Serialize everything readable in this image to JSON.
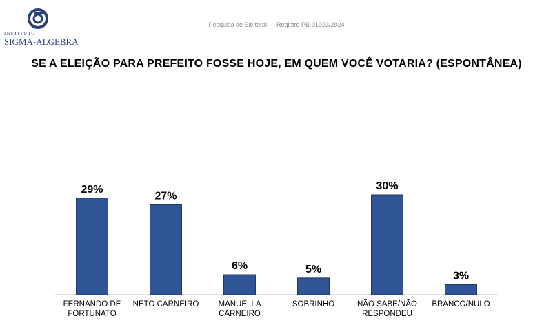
{
  "header": {
    "logo_small": "INSTITUTO",
    "logo_big": "SIGMA-ALGEBRA",
    "registry": "Pesquisa de Eleitoral — Registro PB-01023/2024"
  },
  "colors": {
    "bar": "#2f5597",
    "bar_edge": "#1f3864",
    "logo": "#2a3f7a",
    "axis": "#bfbfbf"
  },
  "chart_data": {
    "type": "bar",
    "title": "SE A ELEIÇÃO PARA PREFEITO FOSSE HOJE, EM QUEM VOCÊ VOTARIA? (ESPONTÂNEA)",
    "categories": [
      [
        "FERNANDO DE",
        "FORTUNATO"
      ],
      [
        "NETO CARNEIRO"
      ],
      [
        "MANUELLA",
        "CARNEIRO"
      ],
      [
        "SOBRINHO"
      ],
      [
        "NÃO SABE/NÃO",
        "RESPONDEU"
      ],
      [
        "BRANCO/NULO"
      ]
    ],
    "values": [
      29,
      27,
      6,
      5,
      30,
      3
    ],
    "data_labels": [
      "29%",
      "27%",
      "6%",
      "5%",
      "30%",
      "3%"
    ],
    "unit": "%",
    "ylim": [
      0,
      30
    ],
    "grid": false,
    "legend": "none"
  }
}
